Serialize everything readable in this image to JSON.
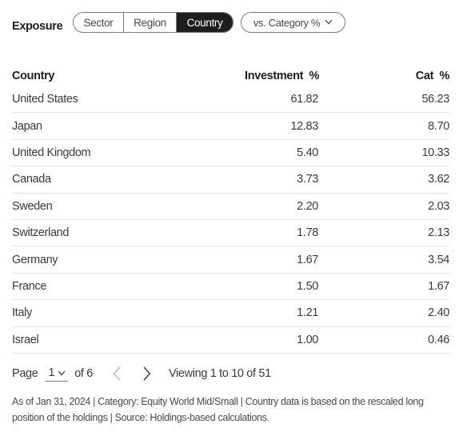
{
  "header": {
    "title": "Exposure",
    "segments": [
      {
        "label": "Sector",
        "active": false
      },
      {
        "label": "Region",
        "active": false
      },
      {
        "label": "Country",
        "active": true
      }
    ],
    "comparison_dropdown": {
      "label": "vs. Category %",
      "icon": "chevron-down-icon"
    }
  },
  "table": {
    "headers": {
      "country": "Country",
      "investment": "Investment  %",
      "category": "Cat  %"
    },
    "rows": [
      {
        "country": "United States",
        "investment": "61.82",
        "category": "56.23"
      },
      {
        "country": "Japan",
        "investment": "12.83",
        "category": "8.70"
      },
      {
        "country": "United Kingdom",
        "investment": "5.40",
        "category": "10.33"
      },
      {
        "country": "Canada",
        "investment": "3.73",
        "category": "3.62"
      },
      {
        "country": "Sweden",
        "investment": "2.20",
        "category": "2.03"
      },
      {
        "country": "Switzerland",
        "investment": "1.78",
        "category": "2.13"
      },
      {
        "country": "Germany",
        "investment": "1.67",
        "category": "3.54"
      },
      {
        "country": "France",
        "investment": "1.50",
        "category": "1.67"
      },
      {
        "country": "Italy",
        "investment": "1.21",
        "category": "2.40"
      },
      {
        "country": "Israel",
        "investment": "1.00",
        "category": "0.46"
      }
    ]
  },
  "pagination": {
    "page_label": "Page",
    "current_page": "1",
    "of_label": "of 6",
    "prev_icon": "chevron-left-icon",
    "next_icon": "chevron-right-icon",
    "viewing": "Viewing 1 to 10 of 51"
  },
  "footnote": "As of Jan 31, 2024 | Category: Equity World Mid/Small | Country data is based on the rescaled long position of the holdings | Source: Holdings-based calculations.",
  "colors": {
    "active_segment_bg": "#1e1e1e",
    "border": "#7a7a7a",
    "row_divider": "#e4e4e4"
  }
}
